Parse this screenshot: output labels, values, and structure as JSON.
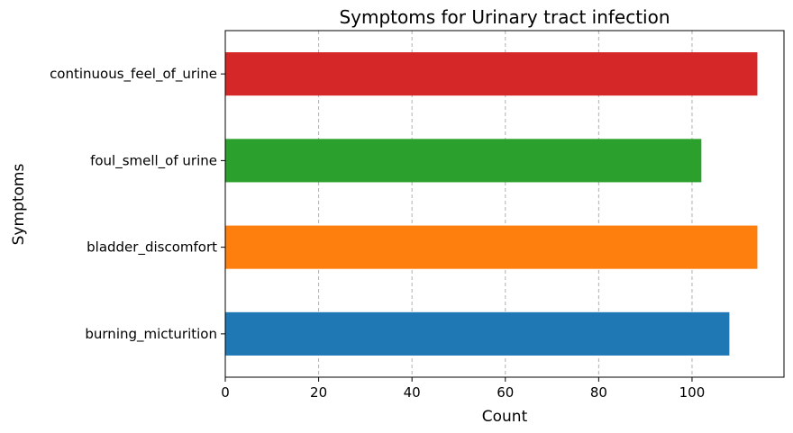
{
  "chart_data": {
    "type": "bar",
    "orientation": "horizontal",
    "title": "Symptoms for Urinary tract infection",
    "xlabel": "Count",
    "ylabel": "Symptoms",
    "categories": [
      "burning_micturition",
      "bladder_discomfort",
      "foul_smell_of urine",
      "continuous_feel_of_urine"
    ],
    "values": [
      108,
      114,
      102,
      114
    ],
    "colors": [
      "#1f77b4",
      "#ff7f0e",
      "#2ca02c",
      "#d62728"
    ],
    "xlim": [
      0,
      120
    ],
    "xticks": [
      0,
      20,
      40,
      60,
      80,
      100
    ],
    "grid": "x-dashed",
    "legend": "none"
  }
}
